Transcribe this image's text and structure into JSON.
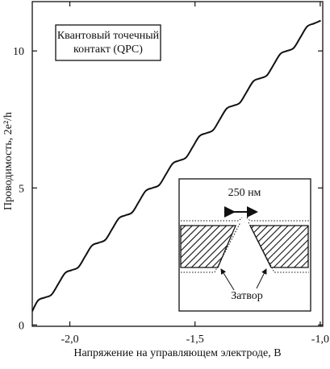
{
  "chart_data": {
    "type": "line",
    "x_label": "Напряжение на управляющем электроде, В",
    "y_label": "Проводимость, 2e²/h",
    "annotation": [
      "Квантовый точечный",
      "контакт (QPC)"
    ],
    "inset_scale": "250 нм",
    "inset_label": "Затвор",
    "x": [
      -2.15,
      -2.127,
      -2.1,
      -2.073,
      -2.046,
      -2.019,
      -1.993,
      -1.966,
      -1.939,
      -1.912,
      -1.885,
      -1.858,
      -1.831,
      -1.804,
      -1.778,
      -1.751,
      -1.724,
      -1.697,
      -1.67,
      -1.643,
      -1.616,
      -1.589,
      -1.563,
      -1.536,
      -1.509,
      -1.482,
      -1.455,
      -1.428,
      -1.401,
      -1.374,
      -1.348,
      -1.321,
      -1.294,
      -1.267,
      -1.24,
      -1.213,
      -1.186,
      -1.159,
      -1.133,
      -1.106,
      -1.079,
      -1.052,
      -1.025,
      -0.998
    ],
    "series": [
      {
        "color": "#111111",
        "values": [
          0.5,
          0.893,
          1,
          1.107,
          1.5,
          1.893,
          2,
          2.107,
          2.5,
          2.893,
          3,
          3.107,
          3.5,
          3.893,
          4,
          4.107,
          4.5,
          4.893,
          5,
          5.107,
          5.5,
          5.893,
          6,
          6.107,
          6.5,
          6.893,
          7,
          7.107,
          7.5,
          7.893,
          8,
          8.107,
          8.5,
          8.893,
          9,
          9.107,
          9.5,
          9.893,
          10,
          10.107,
          10.5,
          10.893,
          11,
          11.107
        ]
      }
    ],
    "xlim": [
      -2.15,
      -0.99
    ],
    "ylim": [
      -0.05,
      11.8
    ],
    "xticks": [
      {
        "value": -2.0,
        "label": "-2,0"
      },
      {
        "value": -1.5,
        "label": "-1,5"
      },
      {
        "value": -1.0,
        "label": "-1,0"
      }
    ],
    "yticks": [
      0,
      5,
      10
    ]
  }
}
